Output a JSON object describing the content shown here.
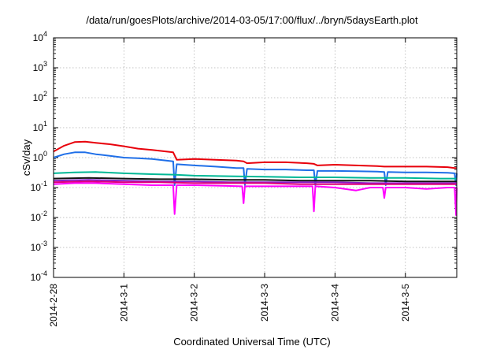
{
  "chart_data": {
    "type": "line",
    "title": "/data/run/goesPlots/archive/2014-03-05/17:00/flux/../bryn/5daysEarth.plot",
    "xlabel": "Coordinated Universal Time (UTC)",
    "ylabel": "cSv/day",
    "x_ticks": [
      "2014-2-28",
      "2014-3-1",
      "2014-3-2",
      "2014-3-3",
      "2014-3-4",
      "2014-3-5"
    ],
    "xlim": [
      0,
      5.73
    ],
    "ylim": [
      0.0001,
      10000
    ],
    "y_scale": "log",
    "y_ticks": [
      {
        "base": "10",
        "exp": "-4"
      },
      {
        "base": "10",
        "exp": "-3"
      },
      {
        "base": "10",
        "exp": "-2"
      },
      {
        "base": "10",
        "exp": "-1"
      },
      {
        "base": "10",
        "exp": "0"
      },
      {
        "base": "10",
        "exp": "1"
      },
      {
        "base": "10",
        "exp": "2"
      },
      {
        "base": "10",
        "exp": "3"
      },
      {
        "base": "10",
        "exp": "4"
      }
    ],
    "grid": true,
    "series": [
      {
        "color": "#e8000b",
        "x": [
          0,
          0.15,
          0.3,
          0.45,
          0.6,
          0.8,
          1.0,
          1.2,
          1.4,
          1.6,
          1.7,
          1.75,
          2.0,
          2.3,
          2.6,
          2.7,
          2.75,
          3.0,
          3.3,
          3.6,
          3.7,
          3.75,
          4.0,
          4.3,
          4.6,
          4.7,
          4.75,
          5.0,
          5.3,
          5.6,
          5.7,
          5.73
        ],
        "y": [
          1.6,
          2.5,
          3.3,
          3.4,
          3.1,
          2.8,
          2.4,
          2.0,
          1.8,
          1.6,
          1.5,
          0.85,
          0.9,
          0.85,
          0.8,
          0.75,
          0.65,
          0.7,
          0.7,
          0.65,
          0.62,
          0.55,
          0.58,
          0.55,
          0.52,
          0.5,
          0.5,
          0.5,
          0.5,
          0.48,
          0.45,
          0.45
        ]
      },
      {
        "color": "#1f6fe8",
        "x": [
          0,
          0.15,
          0.3,
          0.45,
          0.6,
          0.8,
          1.0,
          1.2,
          1.4,
          1.6,
          1.7,
          1.72,
          1.75,
          2.0,
          2.3,
          2.6,
          2.7,
          2.72,
          2.75,
          3.0,
          3.3,
          3.6,
          3.7,
          3.72,
          3.75,
          4.0,
          4.3,
          4.6,
          4.7,
          4.72,
          4.75,
          5.0,
          5.3,
          5.6,
          5.7,
          5.72,
          5.73
        ],
        "y": [
          1.0,
          1.3,
          1.5,
          1.5,
          1.3,
          1.15,
          1.0,
          0.95,
          0.9,
          0.8,
          0.75,
          0.12,
          0.6,
          0.55,
          0.5,
          0.45,
          0.45,
          0.12,
          0.42,
          0.4,
          0.4,
          0.38,
          0.38,
          0.12,
          0.36,
          0.36,
          0.35,
          0.34,
          0.33,
          0.12,
          0.33,
          0.32,
          0.32,
          0.31,
          0.3,
          0.12,
          0.3
        ]
      },
      {
        "color": "#00b896",
        "x": [
          0,
          0.3,
          0.6,
          1.0,
          1.4,
          1.7,
          2.0,
          2.5,
          3.0,
          3.5,
          4.0,
          4.5,
          5.0,
          5.5,
          5.73
        ],
        "y": [
          0.3,
          0.32,
          0.33,
          0.3,
          0.28,
          0.27,
          0.25,
          0.24,
          0.23,
          0.22,
          0.22,
          0.21,
          0.21,
          0.2,
          0.2
        ]
      },
      {
        "color": "#111111",
        "x": [
          0,
          0.5,
          1.0,
          1.5,
          2.0,
          2.5,
          3.0,
          3.5,
          4.0,
          4.5,
          5.0,
          5.5,
          5.73
        ],
        "y": [
          0.2,
          0.21,
          0.2,
          0.19,
          0.19,
          0.18,
          0.18,
          0.17,
          0.17,
          0.17,
          0.16,
          0.16,
          0.16
        ]
      },
      {
        "color": "#8a1cc9",
        "x": [
          0,
          0.5,
          1.0,
          1.5,
          2.0,
          2.5,
          3.0,
          3.5,
          4.0,
          4.5,
          5.0,
          5.5,
          5.73
        ],
        "y": [
          0.17,
          0.18,
          0.17,
          0.16,
          0.16,
          0.15,
          0.15,
          0.15,
          0.15,
          0.14,
          0.14,
          0.14,
          0.14
        ]
      },
      {
        "color": "#e00078",
        "x": [
          0,
          0.5,
          1.0,
          1.5,
          2.0,
          2.5,
          3.0,
          3.5,
          4.0,
          4.5,
          5.0,
          5.5,
          5.73
        ],
        "y": [
          0.15,
          0.16,
          0.15,
          0.15,
          0.14,
          0.14,
          0.14,
          0.13,
          0.13,
          0.13,
          0.13,
          0.13,
          0.13
        ]
      },
      {
        "color": "#ff00ff",
        "x": [
          0,
          0.3,
          0.6,
          1.0,
          1.4,
          1.7,
          1.72,
          1.75,
          2.0,
          2.4,
          2.68,
          2.7,
          2.72,
          3.0,
          3.4,
          3.68,
          3.7,
          3.72,
          4.0,
          4.3,
          4.5,
          4.68,
          4.7,
          4.72,
          5.0,
          5.3,
          5.6,
          5.7,
          5.72,
          5.73
        ],
        "y": [
          0.13,
          0.14,
          0.14,
          0.13,
          0.12,
          0.12,
          0.013,
          0.12,
          0.12,
          0.115,
          0.11,
          0.03,
          0.11,
          0.11,
          0.11,
          0.11,
          0.016,
          0.11,
          0.1,
          0.08,
          0.1,
          0.1,
          0.045,
          0.1,
          0.1,
          0.09,
          0.1,
          0.1,
          0.012,
          0.1
        ]
      }
    ]
  }
}
